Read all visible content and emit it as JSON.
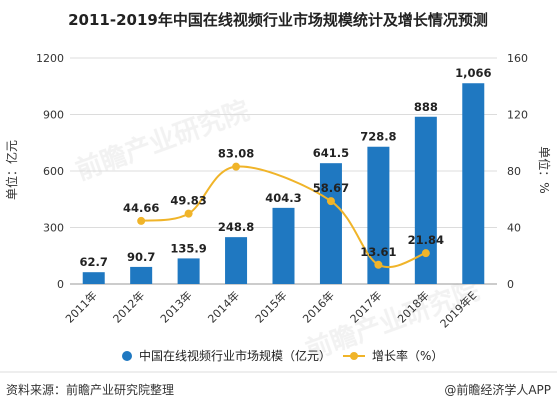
{
  "chart_data": {
    "type": "bar",
    "title": "2011-2019年中国在线视频行业市场规模统计及增长情况预测",
    "categories": [
      "2011年",
      "2012年",
      "2013年",
      "2014年",
      "2015年",
      "2016年",
      "2017年",
      "2018年",
      "2019年E"
    ],
    "series": [
      {
        "name": "中国在线视频行业市场规模（亿元）",
        "type": "bar",
        "axis": "left",
        "values": [
          62.7,
          90.7,
          135.9,
          248.8,
          404.3,
          641.5,
          728.8,
          888,
          1066
        ],
        "labels": [
          "62.7",
          "90.7",
          "135.9",
          "248.8",
          "404.3",
          "641.5",
          "728.8",
          "888",
          "1,066"
        ]
      },
      {
        "name": "增长率（%）",
        "type": "line",
        "axis": "right",
        "values": [
          null,
          44.66,
          49.83,
          83.08,
          null,
          58.67,
          13.61,
          21.84,
          null
        ],
        "labels": [
          "",
          "44.66",
          "49.83",
          "83.08",
          "",
          "58.67",
          "13.61",
          "21.84",
          ""
        ]
      }
    ],
    "y_left": {
      "label": "单位：亿元",
      "ylim": [
        0,
        1200
      ],
      "ticks": [
        "0",
        "300",
        "600",
        "900",
        "1200"
      ]
    },
    "y_right": {
      "label": "单位：%",
      "ylim": [
        0,
        160
      ],
      "ticks": [
        "0",
        "40",
        "80",
        "120",
        "160"
      ]
    },
    "legend_position": "bottom",
    "colors": {
      "bar": "#1f78c1",
      "line": "#f0b429",
      "text": "#333333"
    }
  },
  "footer": {
    "source": "资料来源：前瞻产业研究院整理",
    "brand": "@前瞻经济学人APP"
  },
  "watermark": "前瞻产业研究院"
}
